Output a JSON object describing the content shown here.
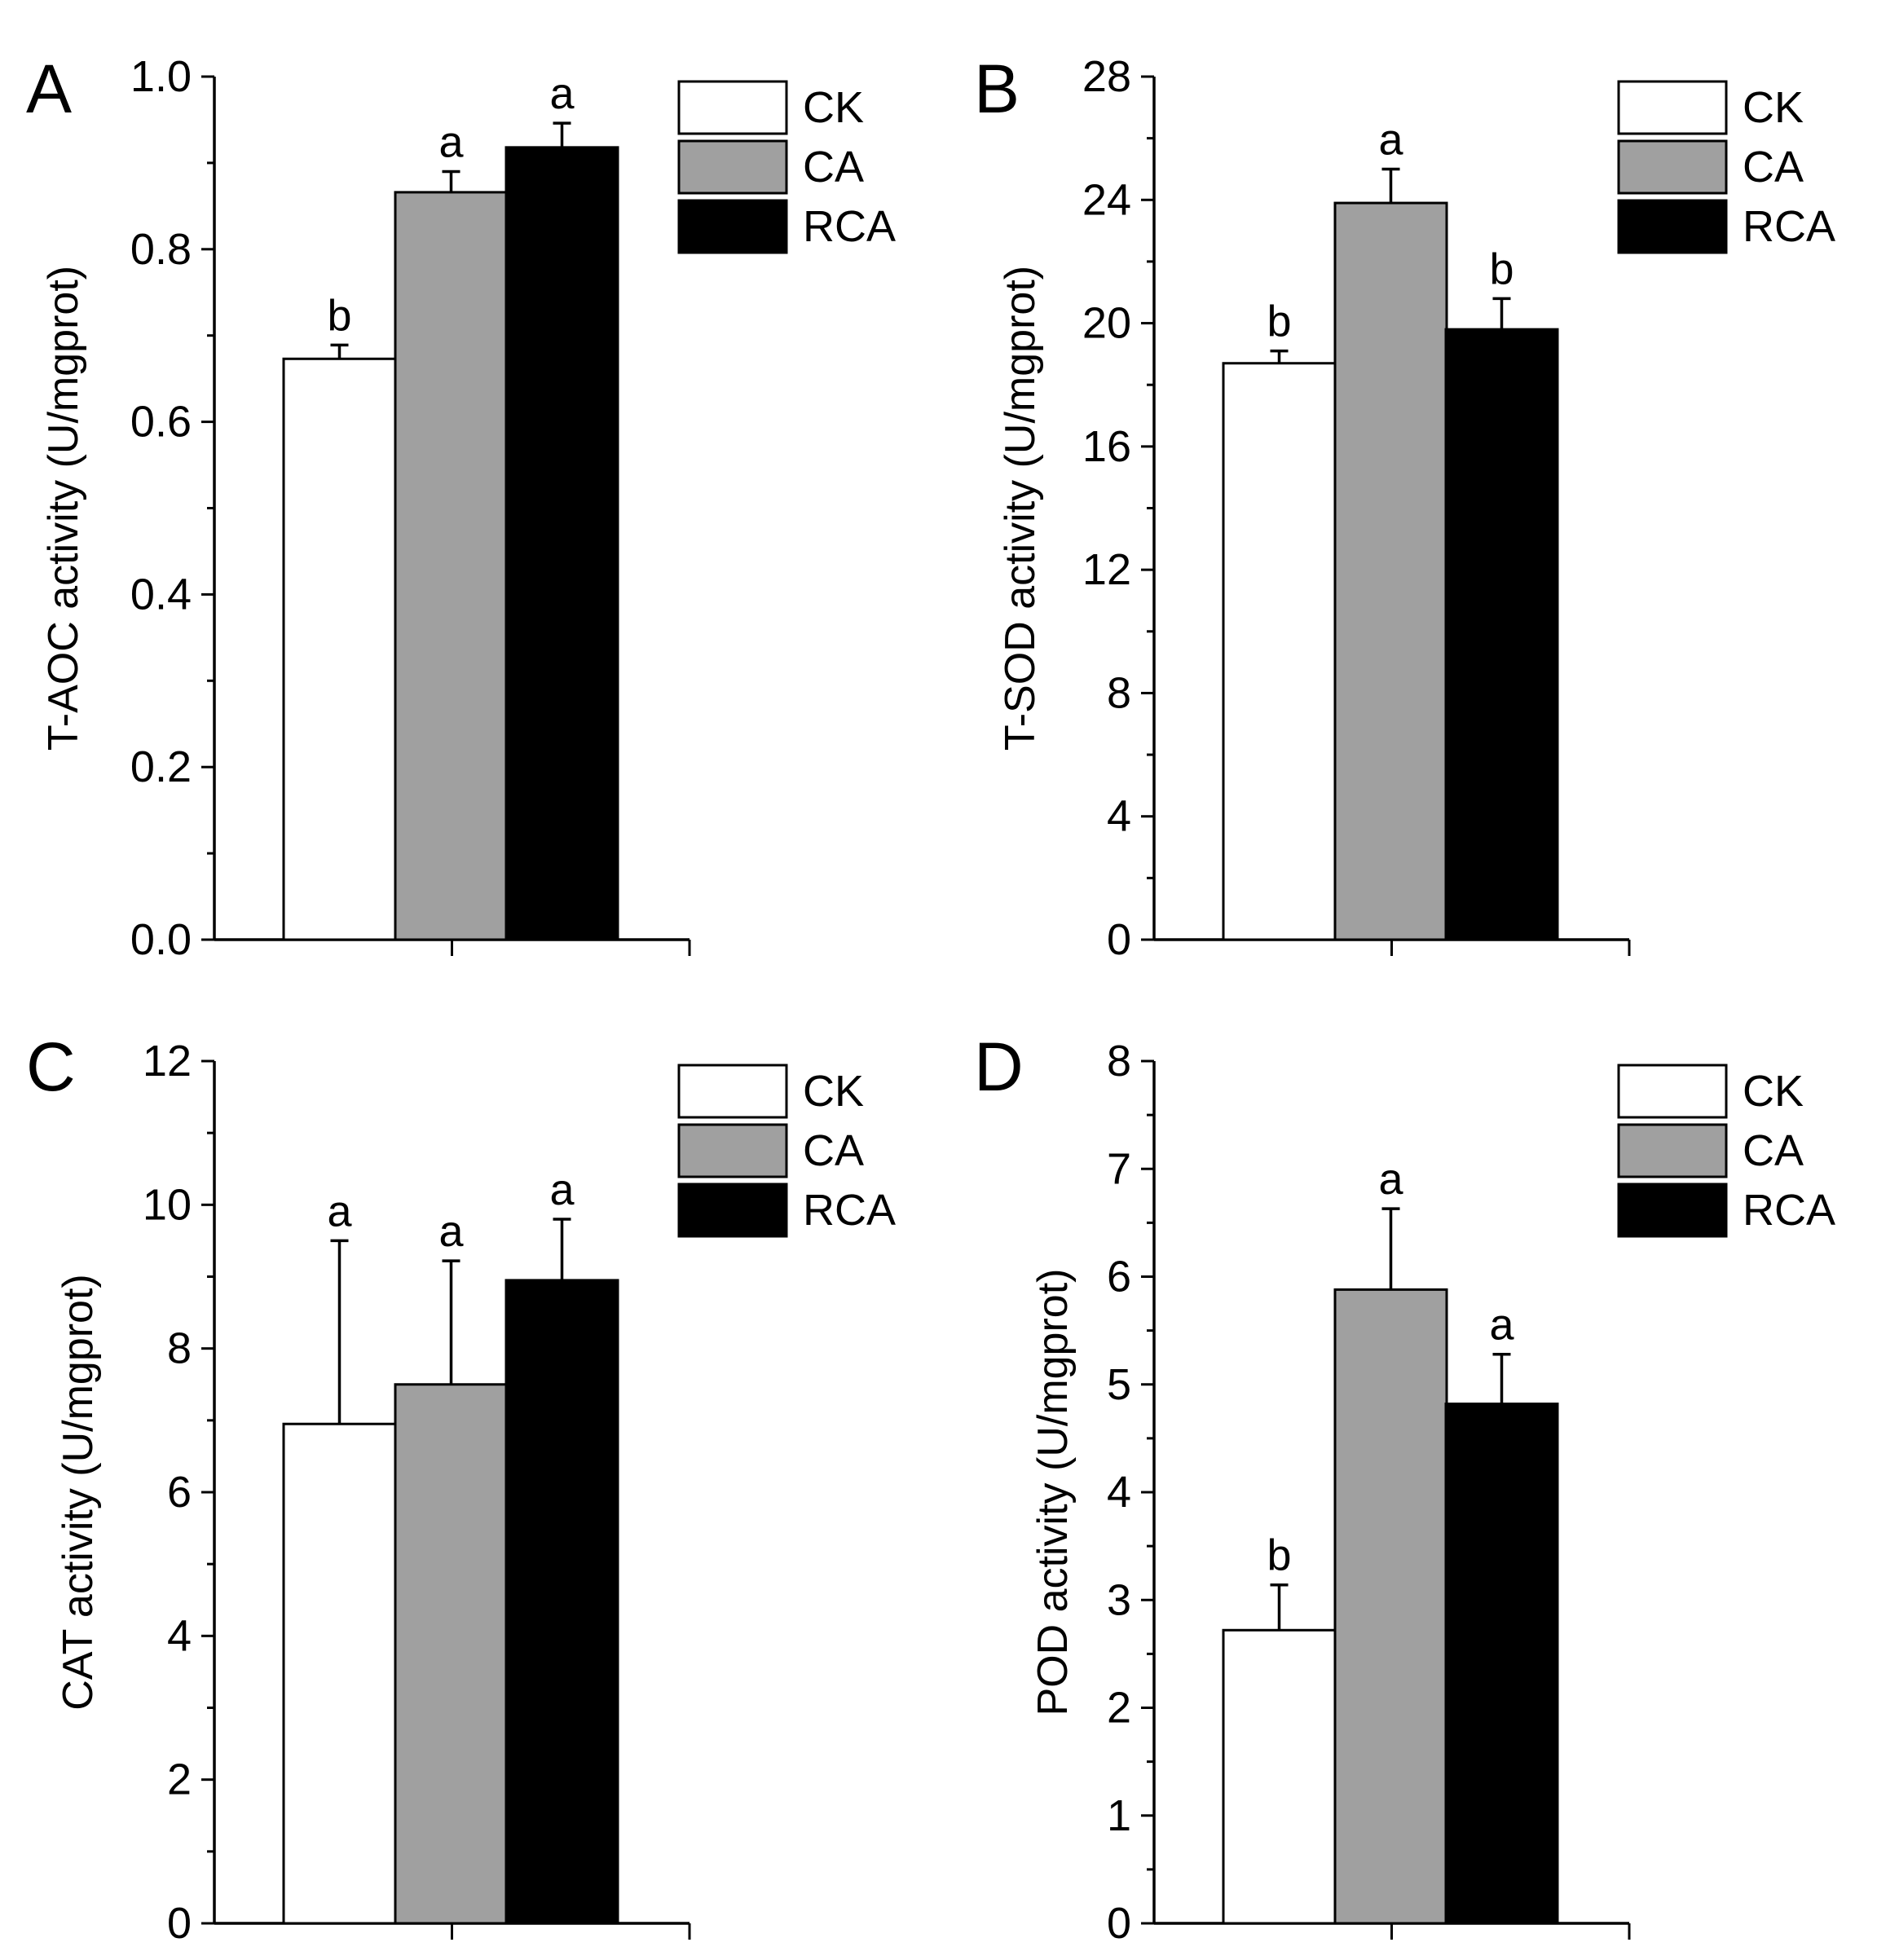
{
  "chart_data": [
    {
      "type": "bar",
      "panel": "A",
      "ylabel": "T-AOC activity (U/mgprot)",
      "xlabel": "",
      "ylim": [
        0,
        1.0
      ],
      "yticks": [
        "0.0",
        "0.2",
        "0.4",
        "0.6",
        "0.8",
        "1.0"
      ],
      "minor_ticks_per_interval": 2,
      "legend_position": "top-right",
      "series": [
        {
          "name": "CK",
          "value": 0.673,
          "error": 0.016,
          "sig": "b",
          "color": "#ffffff"
        },
        {
          "name": "CA",
          "value": 0.866,
          "error": 0.024,
          "sig": "a",
          "color": "#a0a0a0"
        },
        {
          "name": "RCA",
          "value": 0.918,
          "error": 0.028,
          "sig": "a",
          "color": "#000000"
        }
      ]
    },
    {
      "type": "bar",
      "panel": "B",
      "ylabel": "T-SOD activity (U/mgprot)",
      "xlabel": "",
      "ylim": [
        0,
        28
      ],
      "yticks": [
        "0",
        "4",
        "8",
        "12",
        "16",
        "20",
        "24",
        "28"
      ],
      "minor_ticks_per_interval": 2,
      "legend_position": "top-right",
      "series": [
        {
          "name": "CK",
          "value": 18.7,
          "error": 0.4,
          "sig": "b",
          "color": "#ffffff"
        },
        {
          "name": "CA",
          "value": 23.9,
          "error": 1.1,
          "sig": "a",
          "color": "#a0a0a0"
        },
        {
          "name": "RCA",
          "value": 19.8,
          "error": 1.0,
          "sig": "b",
          "color": "#000000"
        }
      ]
    },
    {
      "type": "bar",
      "panel": "C",
      "ylabel": "CAT activity (U/mgprot)",
      "xlabel": "",
      "ylim": [
        0,
        12
      ],
      "yticks": [
        "0",
        "2",
        "4",
        "6",
        "8",
        "10",
        "12"
      ],
      "minor_ticks_per_interval": 2,
      "legend_position": "top-right",
      "series": [
        {
          "name": "CK",
          "value": 6.95,
          "error": 2.55,
          "sig": "a",
          "color": "#ffffff"
        },
        {
          "name": "CA",
          "value": 7.5,
          "error": 1.72,
          "sig": "a",
          "color": "#a0a0a0"
        },
        {
          "name": "RCA",
          "value": 8.95,
          "error": 0.85,
          "sig": "a",
          "color": "#000000"
        }
      ]
    },
    {
      "type": "bar",
      "panel": "D",
      "ylabel": "POD activity (U/mgprot)",
      "xlabel": "",
      "ylim": [
        0,
        8
      ],
      "yticks": [
        "0",
        "1",
        "2",
        "3",
        "4",
        "5",
        "6",
        "7",
        "8"
      ],
      "minor_ticks_per_interval": 2,
      "legend_position": "top-right",
      "series": [
        {
          "name": "CK",
          "value": 2.72,
          "error": 0.42,
          "sig": "b",
          "color": "#ffffff"
        },
        {
          "name": "CA",
          "value": 5.88,
          "error": 0.75,
          "sig": "a",
          "color": "#a0a0a0"
        },
        {
          "name": "RCA",
          "value": 4.82,
          "error": 0.46,
          "sig": "a",
          "color": "#000000"
        }
      ]
    }
  ]
}
